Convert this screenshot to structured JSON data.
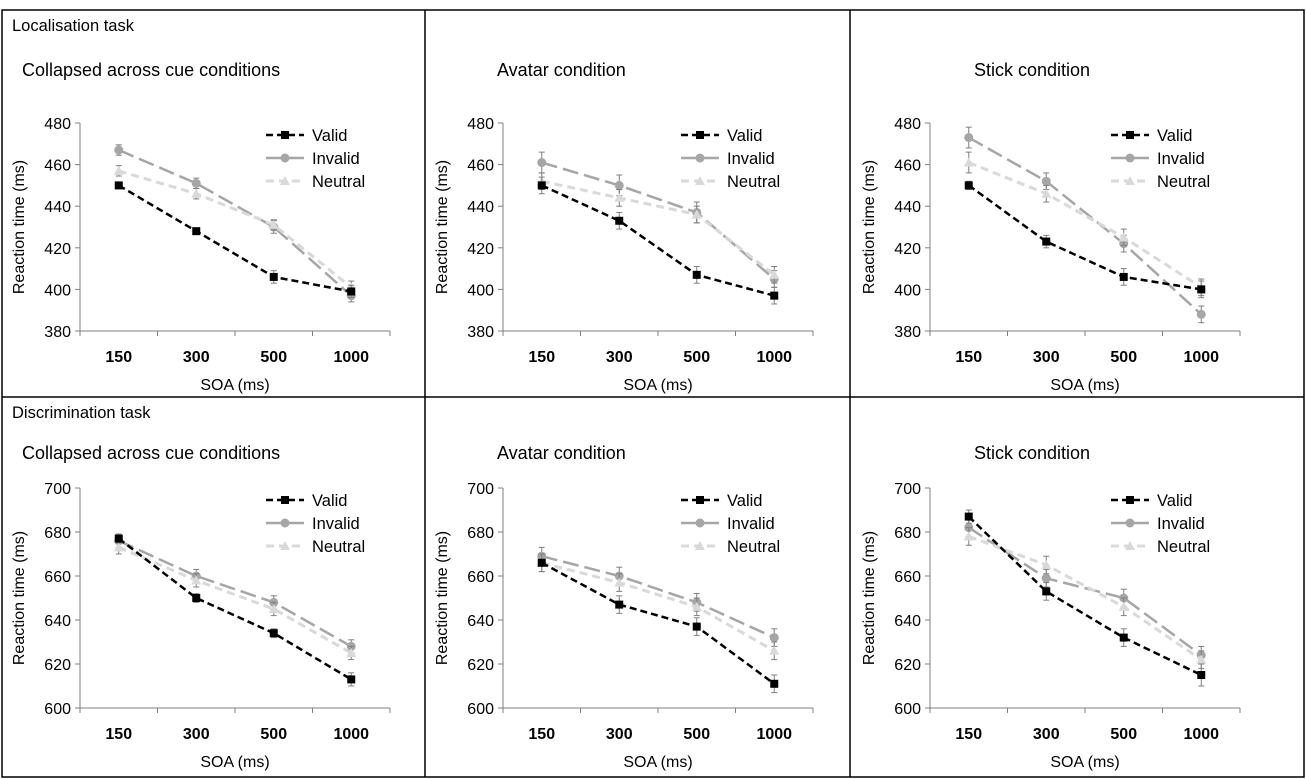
{
  "sections": [
    {
      "label": "Localisation task"
    },
    {
      "label": "Discrimination task"
    }
  ],
  "legend_labels": [
    "Valid",
    "Invalid",
    "Neutral"
  ],
  "series_colors": {
    "Valid": "#000000",
    "Invalid": "#a6a6a6",
    "Neutral": "#d9d9d9"
  },
  "series_markers": {
    "Valid": "square",
    "Invalid": "circle",
    "Neutral": "triangle"
  },
  "chart_data": [
    {
      "type": "line",
      "section": "Localisation task",
      "title": "Collapsed across cue conditions",
      "xlabel": "SOA (ms)",
      "ylabel": "Reaction time (ms)",
      "categories": [
        "150",
        "300",
        "500",
        "1000"
      ],
      "ylim": [
        380,
        480
      ],
      "yticks": [
        380,
        400,
        420,
        440,
        460,
        480
      ],
      "legend": "top-right",
      "grid": false,
      "series": [
        {
          "name": "Valid",
          "values": [
            450,
            428,
            406,
            399
          ],
          "errors": [
            1.5,
            1.5,
            3,
            3
          ]
        },
        {
          "name": "Invalid",
          "values": [
            467,
            451,
            430,
            397
          ],
          "errors": [
            2.5,
            2.5,
            3,
            3
          ]
        },
        {
          "name": "Neutral",
          "values": [
            457,
            446,
            431,
            401
          ],
          "errors": [
            2.5,
            2.5,
            2.5,
            3
          ]
        }
      ]
    },
    {
      "type": "line",
      "section": "Localisation task",
      "title": "Avatar condition",
      "xlabel": "SOA (ms)",
      "ylabel": "Reaction time (ms)",
      "categories": [
        "150",
        "300",
        "500",
        "1000"
      ],
      "ylim": [
        380,
        480
      ],
      "yticks": [
        380,
        400,
        420,
        440,
        460,
        480
      ],
      "legend": "top-right",
      "grid": false,
      "series": [
        {
          "name": "Valid",
          "values": [
            450,
            433,
            407,
            397
          ],
          "errors": [
            4,
            4,
            4,
            4
          ]
        },
        {
          "name": "Invalid",
          "values": [
            461,
            450,
            437,
            405
          ],
          "errors": [
            5,
            5,
            5,
            4
          ]
        },
        {
          "name": "Neutral",
          "values": [
            452,
            444,
            436,
            407
          ],
          "errors": [
            4,
            4,
            4,
            4
          ]
        }
      ]
    },
    {
      "type": "line",
      "section": "Localisation task",
      "title": "Stick condition",
      "xlabel": "SOA (ms)",
      "ylabel": "Reaction time (ms)",
      "categories": [
        "150",
        "300",
        "500",
        "1000"
      ],
      "ylim": [
        380,
        480
      ],
      "yticks": [
        380,
        400,
        420,
        440,
        460,
        480
      ],
      "legend": "top-right",
      "grid": false,
      "series": [
        {
          "name": "Valid",
          "values": [
            450,
            423,
            406,
            400
          ],
          "errors": [
            2,
            3,
            4,
            4
          ]
        },
        {
          "name": "Invalid",
          "values": [
            473,
            452,
            422,
            388
          ],
          "errors": [
            5,
            4,
            4,
            4
          ]
        },
        {
          "name": "Neutral",
          "values": [
            461,
            446,
            425,
            401
          ],
          "errors": [
            5,
            4,
            4,
            4
          ]
        }
      ]
    },
    {
      "type": "line",
      "section": "Discrimination task",
      "title": "Collapsed across cue conditions",
      "xlabel": "SOA (ms)",
      "ylabel": "Reaction time (ms)",
      "categories": [
        "150",
        "300",
        "500",
        "1000"
      ],
      "ylim": [
        600,
        700
      ],
      "yticks": [
        600,
        620,
        640,
        660,
        680,
        700
      ],
      "legend": "top-right",
      "grid": false,
      "series": [
        {
          "name": "Valid",
          "values": [
            677,
            650,
            634,
            613
          ],
          "errors": [
            2,
            2,
            2,
            3
          ]
        },
        {
          "name": "Invalid",
          "values": [
            676,
            660,
            648,
            628
          ],
          "errors": [
            3,
            3,
            3,
            3
          ]
        },
        {
          "name": "Neutral",
          "values": [
            673,
            658,
            645,
            625
          ],
          "errors": [
            3,
            3,
            3,
            3
          ]
        }
      ]
    },
    {
      "type": "line",
      "section": "Discrimination task",
      "title": "Avatar condition",
      "xlabel": "SOA (ms)",
      "ylabel": "Reaction time (ms)",
      "categories": [
        "150",
        "300",
        "500",
        "1000"
      ],
      "ylim": [
        600,
        700
      ],
      "yticks": [
        600,
        620,
        640,
        660,
        680,
        700
      ],
      "legend": "top-right",
      "grid": false,
      "series": [
        {
          "name": "Valid",
          "values": [
            666,
            647,
            637,
            611
          ],
          "errors": [
            4,
            4,
            4,
            4
          ]
        },
        {
          "name": "Invalid",
          "values": [
            669,
            660,
            648,
            632
          ],
          "errors": [
            4,
            4,
            4,
            4
          ]
        },
        {
          "name": "Neutral",
          "values": [
            666,
            657,
            646,
            626
          ],
          "errors": [
            4,
            4,
            4,
            4
          ]
        }
      ]
    },
    {
      "type": "line",
      "section": "Discrimination task",
      "title": "Stick condition",
      "xlabel": "SOA (ms)",
      "ylabel": "Reaction time (ms)",
      "categories": [
        "150",
        "300",
        "500",
        "1000"
      ],
      "ylim": [
        600,
        700
      ],
      "yticks": [
        600,
        620,
        640,
        660,
        680,
        700
      ],
      "legend": "top-right",
      "grid": false,
      "series": [
        {
          "name": "Valid",
          "values": [
            687,
            653,
            632,
            615
          ],
          "errors": [
            3,
            4,
            4,
            5
          ]
        },
        {
          "name": "Invalid",
          "values": [
            682,
            659,
            650,
            624
          ],
          "errors": [
            4,
            4,
            4,
            4
          ]
        },
        {
          "name": "Neutral",
          "values": [
            678,
            665,
            646,
            622
          ],
          "errors": [
            4,
            4,
            4,
            4
          ]
        }
      ]
    }
  ]
}
